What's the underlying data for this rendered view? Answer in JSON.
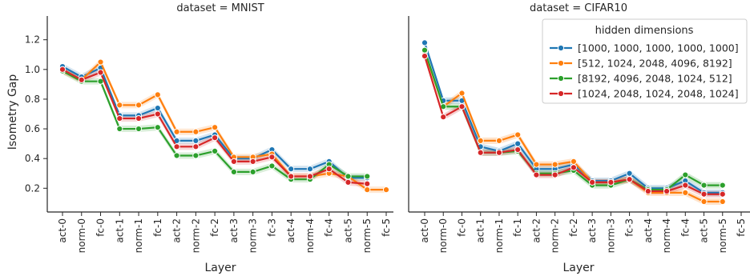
{
  "figure": {
    "ylabel": "Isometry Gap",
    "xlabel": "Layer"
  },
  "legend": {
    "title": "hidden dimensions",
    "entries": [
      "[1000, 1000, 1000, 1000, 1000]",
      "[512, 1024, 2048, 4096, 8192]",
      "[8192, 4096, 2048, 1024, 512]",
      "[1024, 2048, 1024, 2048, 1024]"
    ],
    "placement": "top-right of right panel"
  },
  "colors": [
    "#1f77b4",
    "#ff7f0e",
    "#2ca02c",
    "#d62728"
  ],
  "chart_data": [
    {
      "type": "line",
      "title": "dataset = MNIST",
      "xlabel": "Layer",
      "ylabel": "Isometry Gap",
      "categories": [
        "act-0",
        "norm-0",
        "fc-0",
        "act-1",
        "norm-1",
        "fc-1",
        "act-2",
        "norm-2",
        "fc-2",
        "act-3",
        "norm-3",
        "fc-3",
        "act-4",
        "norm-4",
        "fc-4",
        "act-5",
        "norm-5",
        "fc-5"
      ],
      "ylim": [
        0.04,
        1.36
      ],
      "yticks": [
        0.2,
        0.4,
        0.6,
        0.8,
        1.0,
        1.2
      ],
      "grid": false,
      "series": [
        {
          "name": "[1000, 1000, 1000, 1000, 1000]",
          "values": [
            1.02,
            0.95,
            1.01,
            0.69,
            0.69,
            0.74,
            0.52,
            0.52,
            0.56,
            0.4,
            0.4,
            0.46,
            0.33,
            0.33,
            0.38,
            0.27,
            0.27,
            null
          ]
        },
        {
          "name": "[512, 1024, 2048, 4096, 8192]",
          "values": [
            0.99,
            0.93,
            1.05,
            0.76,
            0.76,
            0.83,
            0.58,
            0.58,
            0.61,
            0.41,
            0.41,
            0.43,
            0.28,
            0.28,
            0.3,
            0.28,
            0.19,
            0.19
          ]
        },
        {
          "name": "[8192, 4096, 2048, 1024, 512]",
          "values": [
            0.99,
            0.92,
            0.92,
            0.6,
            0.6,
            0.61,
            0.42,
            0.42,
            0.45,
            0.31,
            0.31,
            0.35,
            0.26,
            0.26,
            0.36,
            0.28,
            0.28,
            null
          ]
        },
        {
          "name": "[1024, 2048, 1024, 2048, 1024]",
          "values": [
            1.0,
            0.93,
            0.98,
            0.67,
            0.67,
            0.7,
            0.48,
            0.48,
            0.54,
            0.38,
            0.38,
            0.41,
            0.28,
            0.28,
            0.33,
            0.24,
            0.23,
            null
          ]
        }
      ]
    },
    {
      "type": "line",
      "title": "dataset = CIFAR10",
      "xlabel": "Layer",
      "ylabel": "",
      "categories": [
        "act-0",
        "norm-0",
        "fc-0",
        "act-1",
        "norm-1",
        "fc-1",
        "act-2",
        "norm-2",
        "fc-2",
        "act-3",
        "norm-3",
        "fc-3",
        "act-4",
        "norm-4",
        "fc-4",
        "act-5",
        "norm-5",
        "fc-5"
      ],
      "ylim": [
        0.04,
        1.36
      ],
      "grid": false,
      "series": [
        {
          "name": "[1000, 1000, 1000, 1000, 1000]",
          "values": [
            1.18,
            0.79,
            0.79,
            0.48,
            0.45,
            0.5,
            0.33,
            0.33,
            0.36,
            0.25,
            0.25,
            0.3,
            0.2,
            0.2,
            0.25,
            0.17,
            0.17,
            null
          ]
        },
        {
          "name": "[512, 1024, 2048, 4096, 8192]",
          "values": [
            1.12,
            0.75,
            0.84,
            0.52,
            0.52,
            0.56,
            0.36,
            0.36,
            0.38,
            0.24,
            0.24,
            0.26,
            0.17,
            0.17,
            0.17,
            0.11,
            0.11,
            null
          ]
        },
        {
          "name": "[8192, 4096, 2048, 1024, 512]",
          "values": [
            1.13,
            0.75,
            0.75,
            0.44,
            0.44,
            0.45,
            0.3,
            0.3,
            0.32,
            0.22,
            0.22,
            0.26,
            0.19,
            0.19,
            0.29,
            0.22,
            0.22,
            null
          ]
        },
        {
          "name": "[1024, 2048, 1024, 2048, 1024]",
          "values": [
            1.09,
            0.68,
            0.75,
            0.44,
            0.44,
            0.46,
            0.29,
            0.29,
            0.34,
            0.24,
            0.24,
            0.26,
            0.18,
            0.18,
            0.22,
            0.16,
            0.16,
            null
          ]
        }
      ]
    }
  ]
}
